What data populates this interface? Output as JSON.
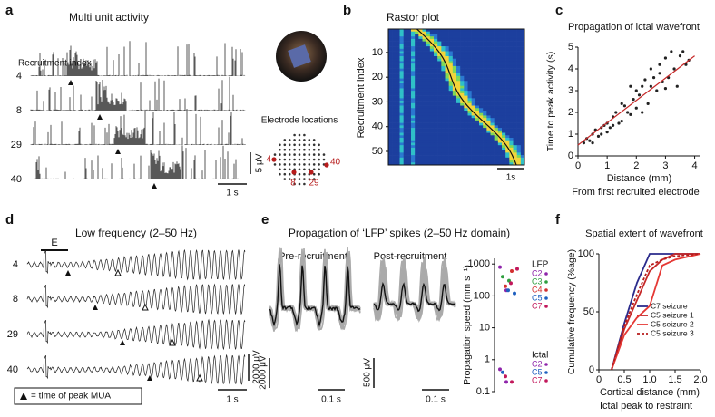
{
  "figure": {
    "a": {
      "label": "a",
      "title": "Multi unit activity",
      "recruitment_index": "Recruitment index",
      "rows": [
        "4",
        "8",
        "29",
        "40"
      ],
      "scale_y": "5 μV",
      "scale_x": "1 s",
      "electrode_title": "Electrode locations",
      "electrode_labels": [
        "4",
        "40",
        "8",
        "29"
      ]
    },
    "b": {
      "label": "b",
      "title": "Rastor plot",
      "y_label": "Recruitment index",
      "y_ticks": [
        "10",
        "20",
        "30",
        "40",
        "50"
      ],
      "scale_x": "1s"
    },
    "c": {
      "label": "c"
    },
    "d": {
      "label": "d",
      "title": "Low frequency (2–50 Hz)",
      "stim": "E",
      "rows": [
        "4",
        "8",
        "29",
        "40"
      ],
      "scale_y": "2000 μV",
      "scale_x": "1 s",
      "legend": "= time of peak MUA"
    },
    "e": {
      "label": "e",
      "title": "Propagation of ‘LFP’ spikes (2–50 Hz domain)",
      "pre": "Pre-recruitment",
      "post": "Post-recruitment",
      "pre_scale_y": "2000 μV",
      "pre_scale_x": "0.1 s",
      "post_scale_y": "500 μV",
      "post_scale_x": "0.1 s"
    },
    "f": {
      "label": "f"
    }
  },
  "chart_data": [
    {
      "type": "scatter",
      "title": "Propagation of ictal wavefront",
      "x_label": "Distance (mm)",
      "y_label": "Time to peak activity (s)",
      "note": "From first recruited electrode",
      "x": [
        0.2,
        0.3,
        0.4,
        0.5,
        0.5,
        0.6,
        0.7,
        0.8,
        0.8,
        0.9,
        1.0,
        1.0,
        1.1,
        1.2,
        1.2,
        1.3,
        1.4,
        1.5,
        1.5,
        1.6,
        1.7,
        1.8,
        1.8,
        1.9,
        2.0,
        2.0,
        2.1,
        2.2,
        2.2,
        2.3,
        2.4,
        2.5,
        2.5,
        2.6,
        2.7,
        2.8,
        2.8,
        2.9,
        3.0,
        3.0,
        3.1,
        3.2,
        3.3,
        3.4,
        3.5,
        3.6,
        3.7,
        3.8
      ],
      "y": [
        0.6,
        0.8,
        0.7,
        1.0,
        0.6,
        1.2,
        0.9,
        1.3,
        1.0,
        1.4,
        1.5,
        1.1,
        1.3,
        1.8,
        1.4,
        2.0,
        1.5,
        2.4,
        1.6,
        2.3,
        2.0,
        1.9,
        3.2,
        2.6,
        2.2,
        3.0,
        2.8,
        3.2,
        2.0,
        3.5,
        2.4,
        3.2,
        4.0,
        3.6,
        3.0,
        3.8,
        4.2,
        3.4,
        4.5,
        3.1,
        3.6,
        4.8,
        4.0,
        3.2,
        4.6,
        4.8,
        4.2,
        4.4
      ],
      "color": "#222222",
      "xlim": [
        0,
        4.2
      ],
      "ylim": [
        0,
        5
      ],
      "xticks": [
        0,
        1,
        2,
        3,
        4
      ],
      "yticks": [
        0,
        1,
        2,
        3,
        4,
        5
      ],
      "trend_line": {
        "x": [
          0,
          4
        ],
        "y": [
          0.5,
          4.6
        ],
        "color": "#c62828"
      }
    },
    {
      "type": "dot",
      "y_label": "Propagation speed (mm s⁻¹)",
      "log_y": true,
      "ylim": [
        0.1,
        1500
      ],
      "yticks": [
        0.1,
        1,
        10,
        100,
        1000
      ],
      "groups": [
        {
          "name": "LFP",
          "series": [
            {
              "name": "C2",
              "color": "#8e24aa",
              "values": [
                800,
                150
              ]
            },
            {
              "name": "C3",
              "color": "#2e9e3e",
              "values": [
                400,
                300
              ]
            },
            {
              "name": "C4",
              "color": "#d32f2f",
              "values": [
                200,
                600
              ]
            },
            {
              "name": "C5",
              "color": "#1e5fbf",
              "values": [
                150,
                120
              ]
            },
            {
              "name": "C7",
              "color": "#c2185b",
              "values": [
                250,
                700
              ]
            }
          ]
        },
        {
          "name": "Ictal",
          "series": [
            {
              "name": "C2",
              "color": "#8e24aa",
              "values": [
                0.5,
                0.2
              ]
            },
            {
              "name": "C5",
              "color": "#1e5fbf",
              "values": [
                0.4
              ]
            },
            {
              "name": "C7",
              "color": "#c2185b",
              "values": [
                0.3,
                0.2
              ]
            }
          ]
        }
      ]
    },
    {
      "type": "line",
      "title": "Spatial extent of wavefront",
      "x_label": "Cortical distance (mm)",
      "y_label": "Cumulative frequency (%age)",
      "note": "Ictal peak to restraint",
      "x": [
        0.25,
        0.5,
        0.75,
        1.0,
        1.25,
        1.5,
        2.0
      ],
      "xlim": [
        0,
        2
      ],
      "ylim": [
        0,
        100
      ],
      "xticks": [
        0,
        0.5,
        {
          "value": 1,
          "label": "1.0"
        },
        1.5,
        {
          "value": 2,
          "label": "2.0"
        }
      ],
      "yticks": [
        0,
        50,
        100
      ],
      "series": [
        {
          "name": "C7 seizure",
          "color": "#2b2b8c",
          "dashed": false,
          "values": [
            0,
            40,
            75,
            100,
            100,
            100,
            100
          ]
        },
        {
          "name": "C5 seizure 1",
          "color": "#c62828",
          "dashed": false,
          "values": [
            0,
            35,
            60,
            85,
            95,
            100,
            100
          ]
        },
        {
          "name": "C5 seizure 2",
          "color": "#e53935",
          "dashed": false,
          "values": [
            0,
            30,
            45,
            55,
            90,
            95,
            100
          ]
        },
        {
          "name": "C5 seizure 3",
          "color": "#b71c1c",
          "dashed": true,
          "values": [
            0,
            38,
            65,
            90,
            95,
            98,
            100
          ]
        }
      ]
    }
  ]
}
